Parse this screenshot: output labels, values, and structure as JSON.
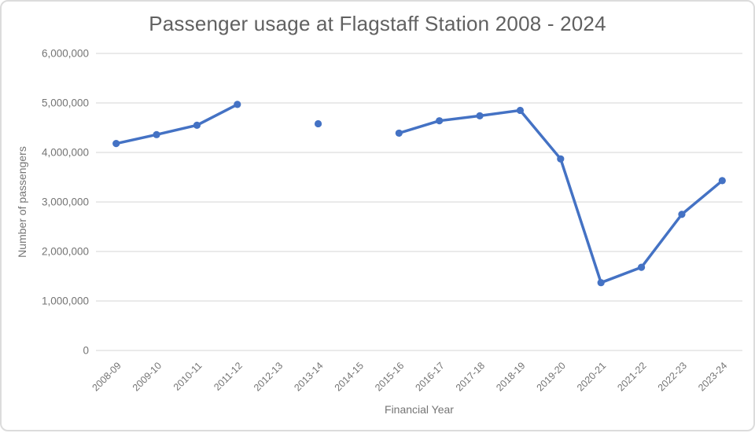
{
  "chart_data": {
    "type": "line",
    "title": "Passenger usage at Flagstaff Station 2008 - 2024",
    "xlabel": "Financial Year",
    "ylabel": "Number of passengers",
    "categories": [
      "2008-09",
      "2009-10",
      "2010-11",
      "2011-12",
      "2012-13",
      "2013-14",
      "2014-15",
      "2015-16",
      "2016-17",
      "2017-18",
      "2018-19",
      "2019-20",
      "2020-21",
      "2021-22",
      "2022-23",
      "2023-24"
    ],
    "values": [
      4180000,
      4360000,
      4550000,
      4970000,
      null,
      4580000,
      null,
      4390000,
      4640000,
      4740000,
      4850000,
      3870000,
      1370000,
      1680000,
      2750000,
      3430000
    ],
    "missing_categories": [
      "2012-13",
      "2014-15"
    ],
    "ylim": [
      0,
      6000000
    ],
    "y_tick_step": 1000000,
    "y_tick_labels": [
      "0",
      "1,000,000",
      "2,000,000",
      "3,000,000",
      "4,000,000",
      "5,000,000",
      "6,000,000"
    ],
    "grid": true,
    "legend": false,
    "line_color": "#4472c4",
    "grid_color": "#e3e3e3",
    "axis_text_color": "#757575",
    "title_color": "#616161"
  }
}
